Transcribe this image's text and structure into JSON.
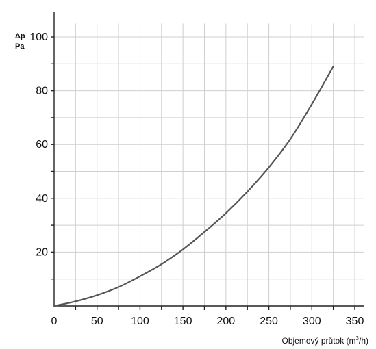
{
  "chart_data": {
    "type": "line",
    "title": "",
    "ylabel_line1": "Δp",
    "ylabel_line2": "Pa",
    "xlabel_prefix": "Objemový průtok (m",
    "xlabel_sup": "3",
    "xlabel_suffix": "/h)",
    "xlim": [
      0,
      350
    ],
    "ylim": [
      0,
      110
    ],
    "x_tick_labels": [
      "0",
      "50",
      "100",
      "150",
      "200",
      "250",
      "300",
      "350"
    ],
    "x_tick_values": [
      0,
      50,
      100,
      150,
      200,
      250,
      300,
      350
    ],
    "y_tick_labels": [
      "20",
      "40",
      "60",
      "80",
      "100"
    ],
    "y_tick_values": [
      20,
      40,
      60,
      80,
      100
    ],
    "grid": true,
    "series": [
      {
        "color": "#555555",
        "x": [
          0,
          25,
          50,
          75,
          100,
          125,
          150,
          175,
          200,
          225,
          250,
          275,
          300,
          325
        ],
        "y": [
          0,
          1.7,
          4.0,
          7.0,
          11.0,
          15.5,
          21.0,
          27.5,
          34.5,
          42.5,
          51.5,
          62.0,
          75.0,
          89.0
        ]
      }
    ]
  }
}
